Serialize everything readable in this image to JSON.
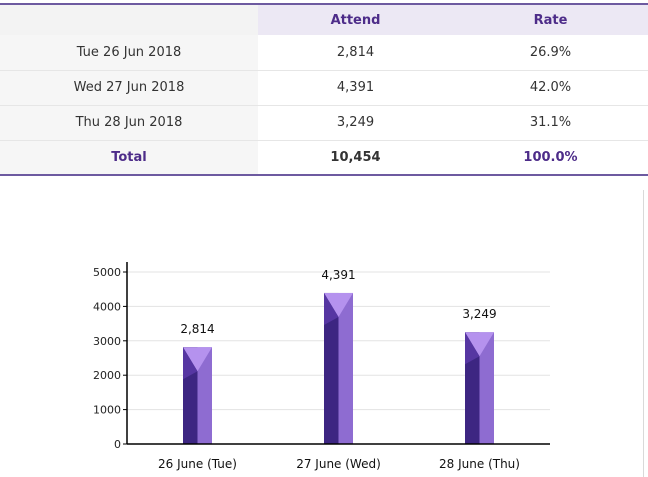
{
  "table": {
    "headers": [
      "",
      "Attend",
      "Rate"
    ],
    "rows": [
      {
        "date": "Tue 26 Jun 2018",
        "attend": "2,814",
        "rate": "26.9%"
      },
      {
        "date": "Wed 27 Jun 2018",
        "attend": "4,391",
        "rate": "42.0%"
      },
      {
        "date": "Thu 28 Jun 2018",
        "attend": "3,249",
        "rate": "31.1%"
      }
    ],
    "total": {
      "label": "Total",
      "attend": "10,454",
      "rate": "100.0%"
    }
  },
  "chart_data": {
    "type": "bar",
    "categories": [
      "26 June (Tue)",
      "27 June (Wed)",
      "28 June (Thu)"
    ],
    "values": [
      2814,
      4391,
      3249
    ],
    "data_labels": [
      "2,814",
      "4,391",
      "3,249"
    ],
    "y_ticks": [
      "0",
      "1000",
      "2000",
      "3000",
      "4000",
      "5000"
    ],
    "ylim": [
      0,
      5000
    ],
    "grid": true,
    "legend": "none",
    "colors": {
      "bar_dark": "#3d2682",
      "bar_light": "#8e6cd1",
      "bar_cap": "#b592ee"
    }
  }
}
